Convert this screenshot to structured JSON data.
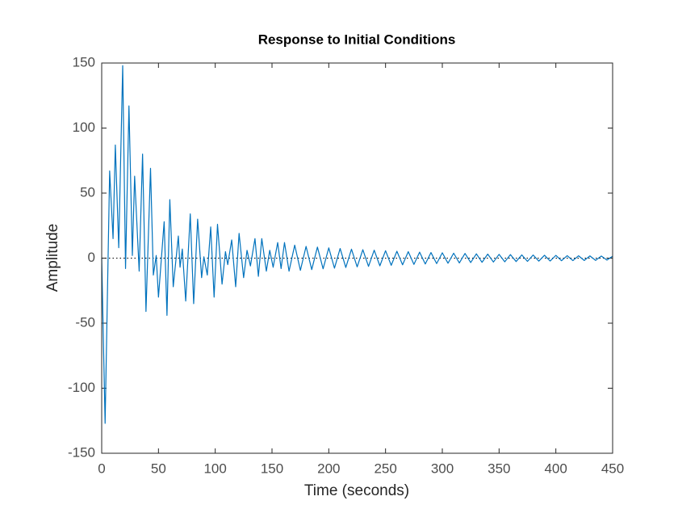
{
  "chart_data": {
    "type": "line",
    "title": "Response to Initial Conditions",
    "x_label": "Time (seconds)",
    "y_label": "Amplitude",
    "xlim": [
      0,
      450
    ],
    "ylim": [
      -150,
      150
    ],
    "xticks": [
      0,
      50,
      100,
      150,
      200,
      250,
      300,
      350,
      400,
      450
    ],
    "yticks": [
      -150,
      -100,
      -50,
      0,
      50,
      100,
      150
    ],
    "reference_y": 0,
    "series": [
      {
        "color": "#0072bd",
        "x": [
          0,
          3,
          7,
          10,
          12,
          15,
          18.5,
          21,
          24,
          27,
          29,
          33,
          36,
          39,
          43,
          45.5,
          48,
          50,
          55,
          57.5,
          60,
          63,
          67.5,
          69,
          71,
          74,
          78,
          81,
          84.5,
          88,
          90,
          93,
          96,
          99,
          102,
          106,
          109,
          111,
          114.5,
          118,
          121,
          125,
          128,
          131,
          135,
          138,
          141,
          145,
          148,
          151,
          155,
          158,
          161,
          165,
          170,
          175,
          180,
          185,
          190,
          195,
          200,
          205,
          210,
          215,
          220,
          225,
          230,
          235,
          240,
          245,
          250,
          255,
          260,
          265,
          270,
          275,
          280,
          285,
          290,
          295,
          300,
          305,
          310,
          315,
          320,
          325,
          330,
          335,
          340,
          345,
          350,
          355,
          360,
          365,
          370,
          375,
          380,
          385,
          390,
          395,
          400,
          405,
          410,
          415,
          420,
          425,
          430,
          435,
          440,
          445,
          450
        ],
        "values": [
          0,
          -127,
          67,
          15,
          87,
          8,
          148,
          -8,
          117,
          2,
          63,
          -10,
          80,
          -41,
          69,
          -13,
          2,
          -30,
          28,
          -44,
          45,
          -22,
          17,
          -7,
          7,
          -33,
          34,
          -35,
          30,
          -15,
          1,
          -13,
          24,
          -30,
          26,
          -20,
          5,
          -5,
          14,
          -22,
          19,
          -15,
          6,
          -6,
          15,
          -14,
          15,
          -10,
          6,
          -7,
          12,
          -8,
          12,
          -10,
          10,
          -9.4,
          9.0,
          -8.8,
          8.5,
          -8.2,
          7.9,
          -7.7,
          7.4,
          -7.2,
          6.9,
          -6.7,
          6.5,
          -6.3,
          6.1,
          -5.9,
          5.7,
          -5.5,
          5.3,
          -5.1,
          5.0,
          -4.8,
          4.6,
          -4.5,
          4.3,
          -4.2,
          4.1,
          -3.9,
          3.8,
          -3.7,
          3.6,
          -3.4,
          3.3,
          -3.2,
          3.1,
          -3.0,
          2.9,
          -2.8,
          2.7,
          -2.6,
          2.5,
          -2.5,
          2.4,
          -2.3,
          2.2,
          -2.2,
          2.1,
          -2.0,
          1.9,
          -1.9,
          1.8,
          -1.8,
          1.7,
          -1.7,
          1.6,
          -1.5,
          1.5
        ]
      }
    ]
  }
}
